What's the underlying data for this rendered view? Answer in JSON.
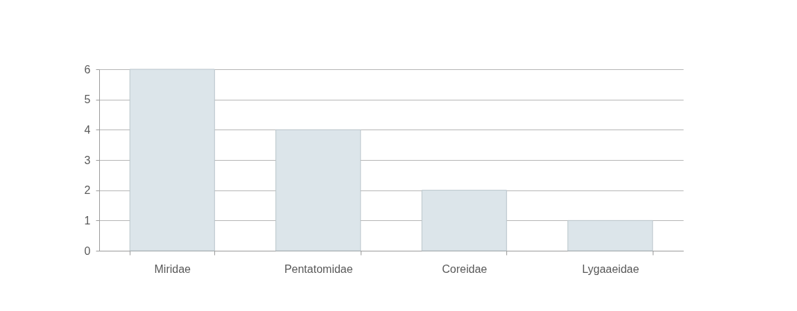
{
  "chart_data": {
    "type": "bar",
    "categories": [
      "Miridae",
      "Pentatomidae",
      "Coreidae",
      "Lygaaeidae"
    ],
    "values": [
      6,
      4,
      2,
      1
    ],
    "color": "#dce5ea",
    "ylim": [
      0,
      6
    ],
    "yticks": [
      0,
      1,
      2,
      3,
      4,
      5,
      6
    ],
    "grid": "y"
  }
}
